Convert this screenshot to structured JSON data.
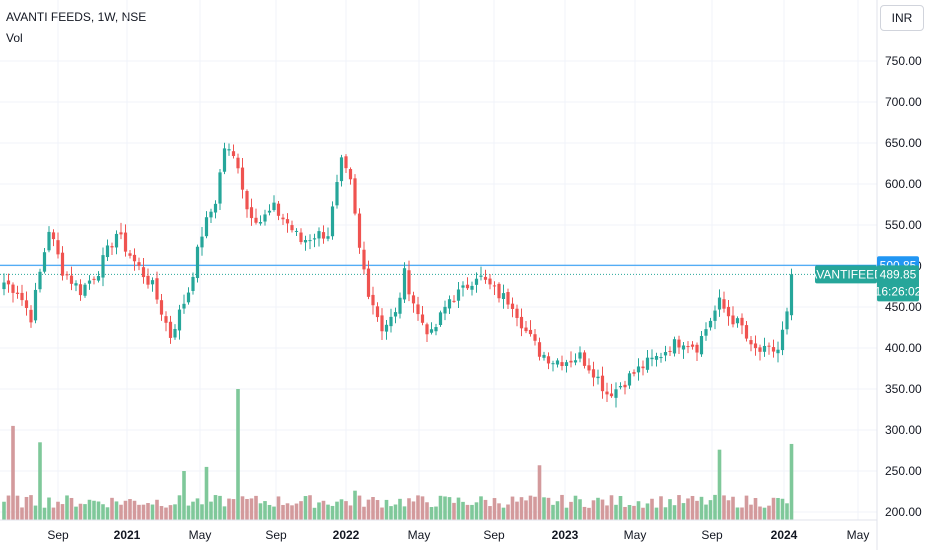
{
  "header": {
    "symbol": "AVANTI FEEDS, 1W, NSE",
    "volume_label": "Vol",
    "currency_button": "INR"
  },
  "colors": {
    "up": "#26a69a",
    "down": "#ef5350",
    "vol_up": "#7fc89a",
    "vol_down": "#d39a9c",
    "hline": "#2196f3",
    "label_blue": "#2196f3",
    "label_green": "#26a69a"
  },
  "price_labels": {
    "high_marker": "500.85",
    "ticker": "AVANTIFEED",
    "last_price": "489.85",
    "countdown": "16:26:02"
  },
  "chart_data": {
    "type": "candlestick",
    "timeframe": "1W",
    "y_ticks": [
      "750.00",
      "700.00",
      "650.00",
      "600.00",
      "550.00",
      "500.00",
      "450.00",
      "400.00",
      "350.00",
      "300.00",
      "250.00",
      "200.00"
    ],
    "x_ticks": [
      "Sep",
      "2021",
      "May",
      "Sep",
      "2022",
      "May",
      "Sep",
      "2023",
      "May",
      "Sep",
      "2024",
      "May"
    ],
    "y_range": [
      192,
      768
    ],
    "last_price": 489.85,
    "marked_level": 500.85,
    "anchors": [
      {
        "w": 0,
        "p": 480
      },
      {
        "w": 3,
        "p": 470
      },
      {
        "w": 6,
        "p": 438
      },
      {
        "w": 10,
        "p": 545
      },
      {
        "w": 13,
        "p": 495
      },
      {
        "w": 17,
        "p": 470
      },
      {
        "w": 21,
        "p": 495
      },
      {
        "w": 25,
        "p": 540
      },
      {
        "w": 29,
        "p": 505
      },
      {
        "w": 33,
        "p": 475
      },
      {
        "w": 37,
        "p": 415
      },
      {
        "w": 41,
        "p": 470
      },
      {
        "w": 44,
        "p": 540
      },
      {
        "w": 47,
        "p": 580
      },
      {
        "w": 49,
        "p": 645
      },
      {
        "w": 52,
        "p": 625
      },
      {
        "w": 54,
        "p": 570
      },
      {
        "w": 57,
        "p": 555
      },
      {
        "w": 60,
        "p": 570
      },
      {
        "w": 63,
        "p": 552
      },
      {
        "w": 66,
        "p": 530
      },
      {
        "w": 69,
        "p": 538
      },
      {
        "w": 72,
        "p": 540
      },
      {
        "w": 75,
        "p": 625
      },
      {
        "w": 77,
        "p": 600
      },
      {
        "w": 79,
        "p": 520
      },
      {
        "w": 81,
        "p": 470
      },
      {
        "w": 84,
        "p": 425
      },
      {
        "w": 87,
        "p": 440
      },
      {
        "w": 89,
        "p": 490
      },
      {
        "w": 92,
        "p": 440
      },
      {
        "w": 95,
        "p": 415
      },
      {
        "w": 99,
        "p": 460
      },
      {
        "w": 102,
        "p": 470
      },
      {
        "w": 105,
        "p": 490
      },
      {
        "w": 107,
        "p": 480
      },
      {
        "w": 110,
        "p": 465
      },
      {
        "w": 113,
        "p": 455
      },
      {
        "w": 116,
        "p": 420
      },
      {
        "w": 119,
        "p": 395
      },
      {
        "w": 122,
        "p": 385
      },
      {
        "w": 125,
        "p": 385
      },
      {
        "w": 128,
        "p": 390
      },
      {
        "w": 131,
        "p": 372
      },
      {
        "w": 134,
        "p": 345
      },
      {
        "w": 136,
        "p": 350
      },
      {
        "w": 139,
        "p": 365
      },
      {
        "w": 142,
        "p": 378
      },
      {
        "w": 145,
        "p": 388
      },
      {
        "w": 148,
        "p": 402
      },
      {
        "w": 151,
        "p": 410
      },
      {
        "w": 154,
        "p": 402
      },
      {
        "w": 157,
        "p": 435
      },
      {
        "w": 159,
        "p": 455
      },
      {
        "w": 161,
        "p": 440
      },
      {
        "w": 164,
        "p": 425
      },
      {
        "w": 166,
        "p": 398
      },
      {
        "w": 169,
        "p": 395
      },
      {
        "w": 172,
        "p": 398
      },
      {
        "w": 174,
        "p": 440
      },
      {
        "w": 175,
        "p": 489.85
      }
    ],
    "volume_spikes": [
      {
        "w": 2,
        "v": 305,
        "dir": "down"
      },
      {
        "w": 8,
        "v": 285,
        "dir": "up"
      },
      {
        "w": 40,
        "v": 250,
        "dir": "up"
      },
      {
        "w": 45,
        "v": 255,
        "dir": "up"
      },
      {
        "w": 52,
        "v": 350,
        "dir": "up"
      },
      {
        "w": 78,
        "v": 226,
        "dir": "up"
      },
      {
        "w": 119,
        "v": 257,
        "dir": "down"
      },
      {
        "w": 159,
        "v": 276,
        "dir": "up"
      },
      {
        "w": 175,
        "v": 283,
        "dir": "up"
      }
    ]
  }
}
